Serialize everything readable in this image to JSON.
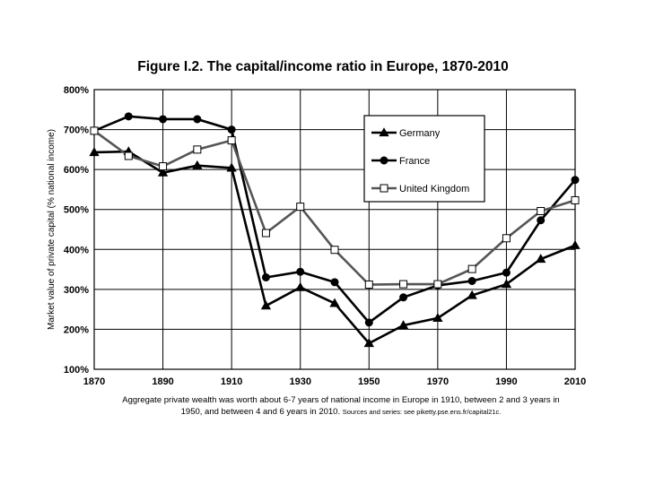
{
  "chart_data": {
    "type": "line",
    "title": "Figure I.2. The capital/income ratio in Europe, 1870-2010",
    "xlabel": "",
    "ylabel": "Market value of private capital (% national income)",
    "x": [
      1870,
      1880,
      1890,
      1900,
      1910,
      1920,
      1930,
      1940,
      1950,
      1960,
      1970,
      1980,
      1990,
      2000,
      2010
    ],
    "xticks": [
      "1870",
      "1890",
      "1910",
      "1930",
      "1950",
      "1970",
      "1990",
      "2010"
    ],
    "yticks": [
      "100%",
      "200%",
      "300%",
      "400%",
      "500%",
      "600%",
      "700%",
      "800%"
    ],
    "ylim": [
      100,
      800
    ],
    "xlim": [
      1870,
      2010
    ],
    "grid": "horizontal",
    "legend_position": "top-right",
    "series": [
      {
        "name": "Germany",
        "marker": "triangle",
        "color": "#000000",
        "values": [
          643,
          645,
          592,
          610,
          604,
          259,
          305,
          265,
          165,
          210,
          228,
          285,
          313,
          376,
          410
        ]
      },
      {
        "name": "France",
        "marker": "circle",
        "color": "#000000",
        "values": [
          697,
          733,
          726,
          726,
          700,
          330,
          344,
          318,
          217,
          280,
          310,
          321,
          342,
          473,
          574
        ]
      },
      {
        "name": "United Kingdom",
        "marker": "square",
        "color": "#555555",
        "values": [
          697,
          634,
          608,
          650,
          673,
          441,
          507,
          399,
          312,
          313,
          313,
          351,
          428,
          496,
          523
        ]
      }
    ]
  },
  "caption": {
    "line1": "Aggregate private wealth was worth about 6-7 years of national income in Europe in 1910, between 2 and 3 years in",
    "line2_main": "1950, and between 4 and 6 years in 2010.",
    "line2_source": "Sources and series: see piketty.pse.ens.fr/capital21c."
  }
}
